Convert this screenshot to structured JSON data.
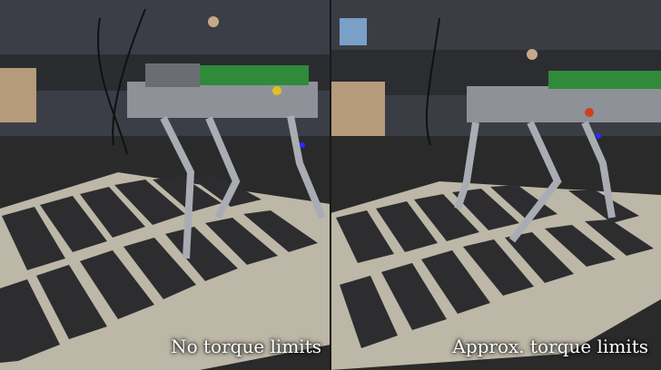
{
  "panels": [
    {
      "caption": "No torque limits"
    },
    {
      "caption": "Approx. torque limits"
    }
  ],
  "colors": {
    "ramp": "#bdb8a8",
    "ramp_pad": "#2e2e30",
    "floor": "#2b2b2b",
    "wall": "#3a3d44",
    "robot_metal": "#9ea2a8",
    "robot_board": "#2f8a3a",
    "indicator": "#2a2aff"
  }
}
